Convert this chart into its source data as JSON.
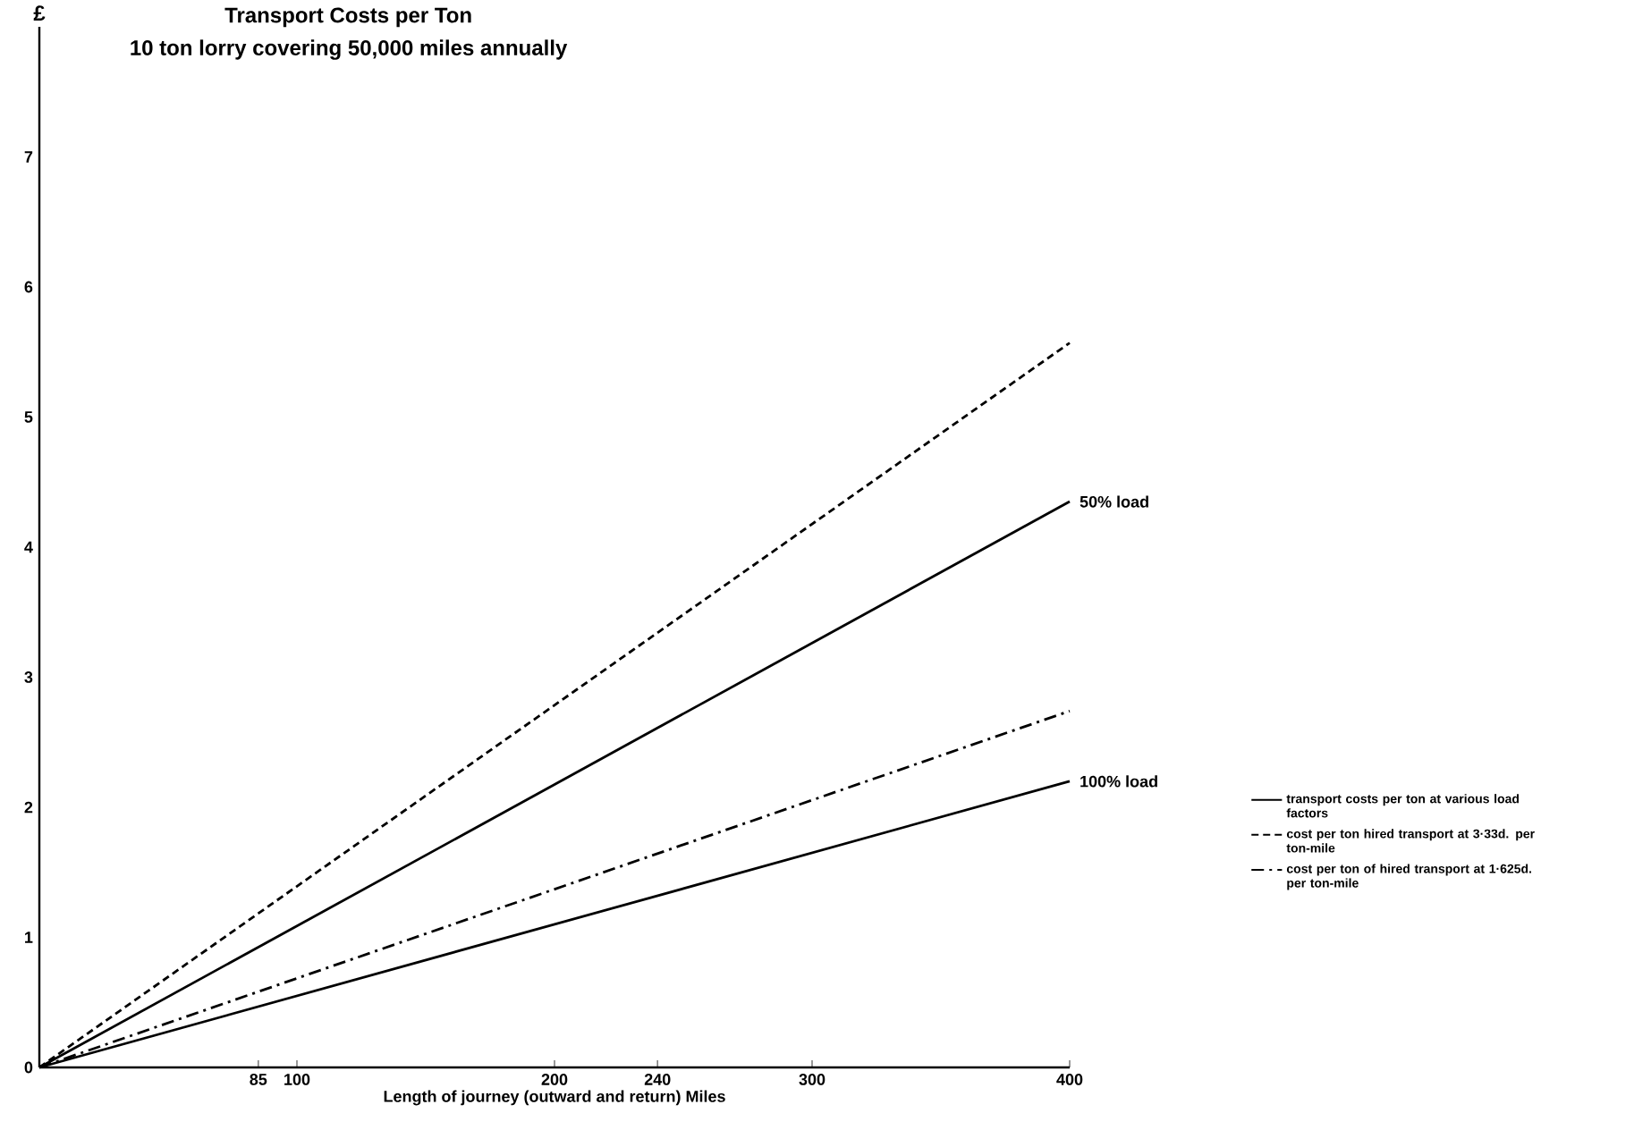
{
  "chart_data": {
    "type": "line",
    "title": "Transport Costs per Ton",
    "subtitle": "10 ton lorry covering 50,000 miles annually",
    "xlabel": "Length of journey (outward and return) Miles",
    "ylabel": "£",
    "xlim": [
      0,
      400
    ],
    "ylim": [
      0,
      8
    ],
    "xticks": [
      85,
      100,
      200,
      240,
      300,
      400
    ],
    "yticks": [
      0,
      1,
      2,
      3,
      4,
      5,
      6,
      7
    ],
    "x": [
      0,
      400
    ],
    "series": [
      {
        "name": "transport costs per ton at various load factors",
        "color": "#000000",
        "values": [
          0,
          4.35
        ],
        "line_style": "solid"
      },
      {
        "color": "#000000",
        "values": [
          0,
          2.2
        ],
        "line_style": "solid"
      },
      {
        "name": "cost per ton hired transport at 3·33d. per ton-mile",
        "color": "#000000",
        "values": [
          0,
          5.57
        ],
        "line_style": "dashed"
      },
      {
        "name": "cost per ton of hired transport at 1·625d. per ton-mile",
        "color": "#000000",
        "values": [
          0,
          2.74
        ],
        "line_style": "dashdot"
      }
    ],
    "annotations": [
      {
        "text": "50% load",
        "x": 400,
        "y": 4.35
      },
      {
        "text": "100% load",
        "x": 400,
        "y": 2.2
      }
    ],
    "legend": "right",
    "grid": false,
    "marker": "none"
  }
}
